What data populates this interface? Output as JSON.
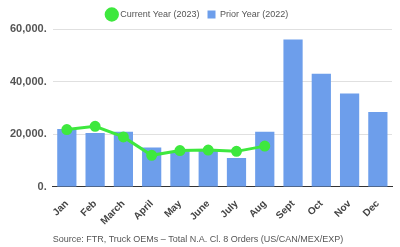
{
  "chart_data": {
    "type": "bar",
    "subtitle": "Source: FTR, Truck OEMs – Total N.A. Cl. 8 Orders (US/CAN/MEX/EXP)",
    "categories": [
      "Jan",
      "Feb",
      "March",
      "April",
      "May",
      "June",
      "July",
      "Aug",
      "Sept",
      "Oct",
      "Nov",
      "Dec"
    ],
    "series": [
      {
        "name": "Prior Year (2022)",
        "type": "bar",
        "color": "#6d9eeb",
        "values": [
          22000,
          20500,
          21000,
          15000,
          13500,
          14000,
          11000,
          21000,
          56000,
          43000,
          35500,
          28500
        ]
      },
      {
        "name": "Current Year (2023)",
        "type": "line",
        "color": "#3ee83e",
        "marker": "circle",
        "line_style": "solid",
        "values": [
          21800,
          23000,
          19000,
          12000,
          13800,
          14000,
          13500,
          15500,
          null,
          null,
          null,
          null
        ]
      }
    ],
    "ylim": [
      0,
      60000
    ],
    "yticks": [
      {
        "value": 0,
        "label": "0."
      },
      {
        "value": 20000,
        "label": "20,000."
      },
      {
        "value": 40000,
        "label": "40,000."
      },
      {
        "value": 60000,
        "label": "60,000."
      }
    ],
    "grid": true,
    "legend": "top"
  }
}
